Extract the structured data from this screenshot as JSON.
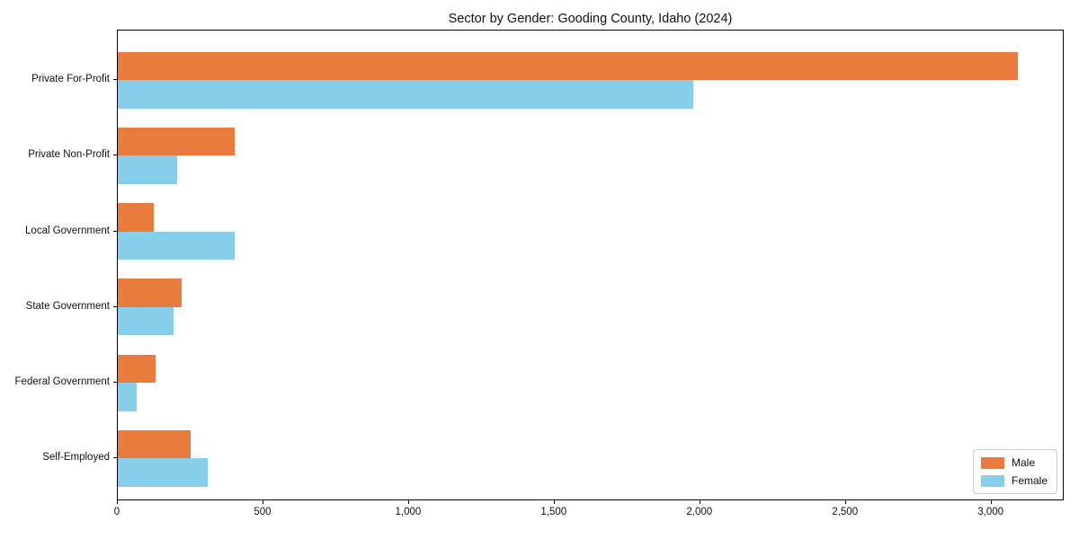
{
  "chart_data": {
    "type": "bar",
    "orientation": "horizontal",
    "title": "Sector by Gender: Gooding County, Idaho (2024)",
    "categories": [
      "Private For-Profit",
      "Private Non-Profit",
      "Local Government",
      "State Government",
      "Federal Government",
      "Self-Employed"
    ],
    "series": [
      {
        "name": "Male",
        "color": "#E97B3D",
        "values": [
          3090,
          400,
          125,
          220,
          130,
          250
        ]
      },
      {
        "name": "Female",
        "color": "#87CEEB",
        "values": [
          1975,
          205,
          400,
          190,
          65,
          310
        ]
      }
    ],
    "xlabel": "",
    "ylabel": "",
    "xlim": [
      0,
      3245
    ],
    "xticks": [
      {
        "value": 0,
        "label": "0"
      },
      {
        "value": 500,
        "label": "500"
      },
      {
        "value": 1000,
        "label": "1,000"
      },
      {
        "value": 1500,
        "label": "1,500"
      },
      {
        "value": 2000,
        "label": "2,000"
      },
      {
        "value": 2500,
        "label": "2,500"
      },
      {
        "value": 3000,
        "label": "3,000"
      }
    ],
    "grid": false,
    "legend_position": "lower right",
    "plot_border_color": "#000000",
    "background_color": "#ffffff"
  }
}
